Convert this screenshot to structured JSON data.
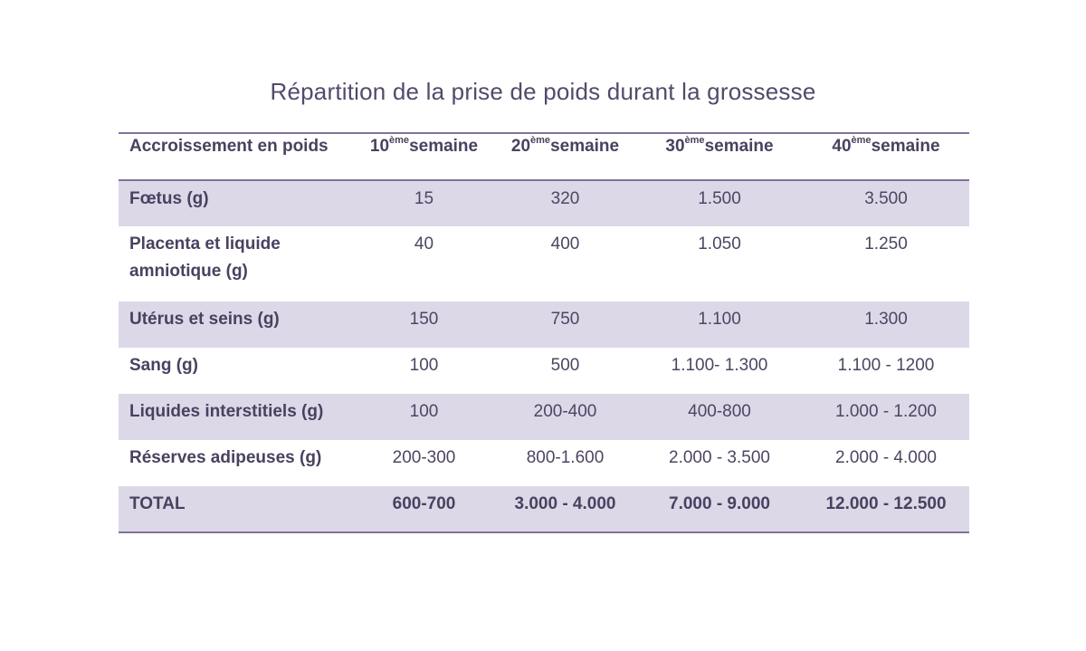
{
  "title": "Répartition de la prise de poids durant la grossesse",
  "table": {
    "header": {
      "label": "Accroissement en poids",
      "columns": [
        {
          "num": "10",
          "sup": "ème",
          "word": "semaine"
        },
        {
          "num": "20",
          "sup": "ème",
          "word": "semaine"
        },
        {
          "num": "30",
          "sup": "ème",
          "word": "semaine"
        },
        {
          "num": "40",
          "sup": "ème",
          "word": "semaine"
        }
      ]
    },
    "rows": [
      {
        "label": "Fœtus (g)",
        "values": [
          "15",
          "320",
          "1.500",
          "3.500"
        ]
      },
      {
        "label": "Placenta et liquide amniotique (g)",
        "values": [
          "40",
          "400",
          "1.050",
          "1.250"
        ]
      },
      {
        "label": "Utérus et seins (g)",
        "values": [
          "150",
          "750",
          "1.100",
          "1.300"
        ]
      },
      {
        "label": "Sang (g)",
        "values": [
          "100",
          "500",
          "1.100- 1.300",
          "1.100 - 1200"
        ]
      },
      {
        "label": "Liquides interstitiels (g)",
        "values": [
          "100",
          "200-400",
          "400-800",
          "1.000 - 1.200"
        ]
      },
      {
        "label": "Réserves adipeuses (g)",
        "values": [
          "200-300",
          "800-1.600",
          "2.000 - 3.500",
          "2.000 - 4.000"
        ]
      },
      {
        "label": "TOTAL",
        "values": [
          "600-700",
          "3.000 - 4.000",
          "7.000 - 9.000",
          "12.000 - 12.500"
        ]
      }
    ]
  },
  "colors": {
    "shaded_row": "#ddd8e8",
    "rule": "#80739a",
    "text": "#4a4160"
  }
}
